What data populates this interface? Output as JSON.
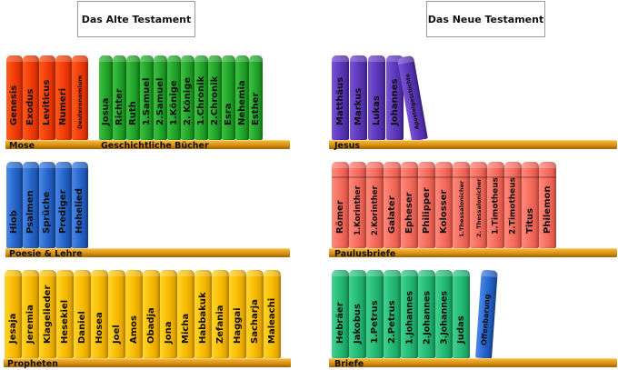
{
  "headers": {
    "old_testament": "Das Alte  Testament",
    "new_testament": "Das Neue Testament"
  },
  "shelves": {
    "mose": "Mose",
    "geschichte": "Geschichtliche Bücher",
    "poesie": "Poesie & Lehre",
    "propheten": "Propheten",
    "jesus": "Jesus",
    "paulus": "Paulusbriefe",
    "briefe": "Briefe"
  },
  "books": {
    "mose": [
      "Genesis",
      "Exodus",
      "Leviticus",
      "Numeri",
      "Deuteronomium"
    ],
    "geschichte": [
      "Josua",
      "Richter",
      "Ruth",
      "1.Samuel",
      "2.Samuel",
      "1.Könige",
      "2. Könige",
      "1.Chronik",
      "2.Chronik",
      "Esra",
      "Nehemia",
      "Esther"
    ],
    "poesie": [
      "Hiob",
      "Psalmen",
      "Sprüche",
      "Prediger",
      "Hohelied"
    ],
    "propheten": [
      "Jesaja",
      "Jeremia",
      "Klagelieder",
      "Hesekiel",
      "Daniel",
      "Hosea",
      "Joel",
      "Amos",
      "Obadja",
      "Jona",
      "Micha",
      "Habbakuk",
      "Zefania",
      "Haggai",
      "Sacharja",
      "Maleachi"
    ],
    "jesus": [
      "Matthäus",
      "Markus",
      "Lukas",
      "Johannes",
      "Apostelgeschichte"
    ],
    "paulus": [
      "Römer",
      "1.Korinther",
      "2.Korinther",
      "Galater",
      "Epheser",
      "Philipper",
      "Kolosser",
      "1.Thessalonicher",
      "2. Thessalonicher",
      "1.Timotheus",
      "2.Timotheus",
      "Titus",
      "Philemon"
    ],
    "briefe": [
      "Hebräer",
      "Jakobus",
      "1.Petrus",
      "2.Petrus",
      "1.Johannes",
      "2.Johannes",
      "3.Johannes",
      "Judas",
      "Offenbarung"
    ]
  },
  "colors": {
    "mose": "#f03a08",
    "geschichte": "#20a428",
    "poesie": "#2463c8",
    "propheten": "#f7b800",
    "jesus": "#5a35b8",
    "paulus": "#f46a5c",
    "briefe": "#22b774",
    "shelf": "#e39a1a"
  }
}
